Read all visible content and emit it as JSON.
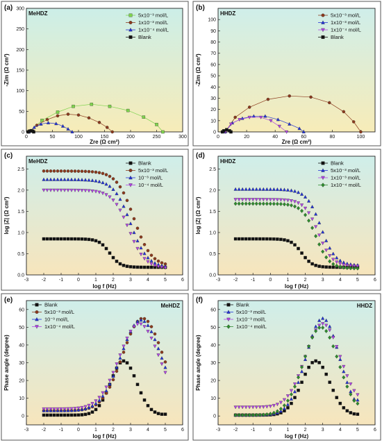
{
  "chart_data": [
    {
      "type": "scatter",
      "panel_label": "(a)",
      "title": "MeHDZ",
      "xlabel": "Zre (Ω cm²)",
      "ylabel": "-Zim (Ω cm²)",
      "xlim": [
        0,
        300
      ],
      "ylim": [
        0,
        300
      ],
      "xticks": [
        0,
        50,
        100,
        150,
        200,
        250,
        300
      ],
      "yticks": [
        0,
        50,
        100,
        150,
        200,
        250,
        300
      ],
      "legend_position": "top-right",
      "background_gradient": [
        "#cceee8",
        "#f7ecb8"
      ],
      "series": [
        {
          "name": "5x10⁻³ mol/L",
          "color": "#7fd34e",
          "marker": "square",
          "line": true,
          "points": [
            [
              5,
              0
            ],
            [
              30,
              28
            ],
            [
              60,
              48
            ],
            [
              90,
              62
            ],
            [
              125,
              67
            ],
            [
              160,
              62
            ],
            [
              195,
              52
            ],
            [
              225,
              36
            ],
            [
              250,
              18
            ],
            [
              262,
              0
            ]
          ]
        },
        {
          "name": "1x10⁻³ mol/L",
          "color": "#8b3a1e",
          "marker": "circle",
          "line": true,
          "points": [
            [
              5,
              0
            ],
            [
              20,
              16
            ],
            [
              40,
              30
            ],
            [
              60,
              39
            ],
            [
              80,
              43
            ],
            [
              100,
              41
            ],
            [
              120,
              34
            ],
            [
              140,
              23
            ],
            [
              155,
              11
            ],
            [
              165,
              0
            ]
          ]
        },
        {
          "name": "1x10⁻⁴ mol/L",
          "color": "#2433d6",
          "marker": "triangle",
          "line": true,
          "points": [
            [
              5,
              0
            ],
            [
              15,
              11
            ],
            [
              28,
              19
            ],
            [
              42,
              22
            ],
            [
              57,
              20
            ],
            [
              70,
              14
            ],
            [
              80,
              7
            ],
            [
              88,
              0
            ]
          ]
        },
        {
          "name": "Blank",
          "color": "#111111",
          "marker": "square",
          "line": true,
          "points": [
            [
              3,
              0
            ],
            [
              6,
              2
            ],
            [
              9,
              3
            ],
            [
              12,
              2
            ],
            [
              14,
              0
            ]
          ]
        }
      ]
    },
    {
      "type": "scatter",
      "panel_label": "(b)",
      "title": "HHDZ",
      "xlabel": "Zre (Ω cm²)",
      "ylabel": "-Zim (Ω cm²)",
      "xlim": [
        0,
        110
      ],
      "ylim": [
        0,
        110
      ],
      "xticks": [
        0,
        20,
        40,
        60,
        80,
        100
      ],
      "yticks": [
        0,
        10,
        20,
        30,
        40,
        50,
        60,
        70,
        80,
        90,
        100
      ],
      "legend_position": "top-right",
      "background_gradient": [
        "#cfeeea",
        "#f7ecb8"
      ],
      "series": [
        {
          "name": "5x10⁻³ mol/L",
          "color": "#8b3a1e",
          "marker": "circle",
          "line": true,
          "points": [
            [
              5,
              0
            ],
            [
              12,
              13
            ],
            [
              22,
              22
            ],
            [
              35,
              29
            ],
            [
              50,
              32
            ],
            [
              65,
              31
            ],
            [
              78,
              26
            ],
            [
              88,
              18
            ],
            [
              95,
              9
            ],
            [
              100,
              0
            ]
          ]
        },
        {
          "name": "1x10⁻³ mol/L",
          "color": "#2433d6",
          "marker": "triangle",
          "line": true,
          "points": [
            [
              5,
              0
            ],
            [
              10,
              8
            ],
            [
              17,
              12
            ],
            [
              25,
              14
            ],
            [
              33,
              14
            ],
            [
              42,
              11
            ],
            [
              50,
              7
            ],
            [
              57,
              3
            ],
            [
              60,
              0
            ]
          ]
        },
        {
          "name": "1x10⁻⁴ mol/L",
          "color": "#b146e6",
          "marker": "triangle-down",
          "line": true,
          "points": [
            [
              5,
              0
            ],
            [
              9,
              7
            ],
            [
              15,
              11
            ],
            [
              22,
              13
            ],
            [
              30,
              13
            ],
            [
              37,
              10
            ],
            [
              43,
              5
            ],
            [
              48,
              0
            ]
          ]
        },
        {
          "name": "Blank",
          "color": "#111111",
          "marker": "square",
          "line": true,
          "points": [
            [
              3,
              0
            ],
            [
              4,
              1
            ],
            [
              6,
              2
            ],
            [
              8,
              1
            ],
            [
              9,
              0
            ]
          ]
        }
      ]
    },
    {
      "type": "scatter",
      "panel_label": "(c)",
      "title": "MeHDZ",
      "xlabel": "log f (Hz)",
      "ylabel": "log |Z| (Ω cm²)",
      "xlim": [
        -3,
        6
      ],
      "ylim": [
        0,
        2.8
      ],
      "xticks": [
        -3,
        -2,
        -1,
        0,
        1,
        2,
        3,
        4,
        5,
        6
      ],
      "yticks": [
        0.0,
        0.5,
        1.0,
        1.5,
        2.0,
        2.5
      ],
      "legend_position": "top-right",
      "background_gradient": [
        "#cfeeea",
        "#f7e5bc"
      ],
      "series": [
        {
          "name": "Blank",
          "color": "#111111",
          "marker": "square",
          "shape": "bode-mod",
          "params": {
            "hi": 0.85,
            "lo": 0.18,
            "fc": 1.8,
            "w": 0.55
          }
        },
        {
          "name": "5x10⁻³ mol/L",
          "color": "#8b3a1e",
          "marker": "circle",
          "shape": "bode-mod",
          "params": {
            "hi": 2.45,
            "lo": 0.2,
            "fc": 3.2,
            "w": 0.9
          }
        },
        {
          "name": "10⁻³     mol/L",
          "color": "#2433d6",
          "marker": "triangle",
          "shape": "bode-mod",
          "params": {
            "hi": 2.25,
            "lo": 0.17,
            "fc": 3.0,
            "w": 0.88
          }
        },
        {
          "name": "10⁻⁴     mol/L",
          "color": "#b146e6",
          "marker": "triangle-down",
          "shape": "bode-mod",
          "params": {
            "hi": 2.0,
            "lo": 0.15,
            "fc": 2.9,
            "w": 0.85
          }
        }
      ]
    },
    {
      "type": "scatter",
      "panel_label": "(d)",
      "title": "HHDZ",
      "xlabel": "log f (Hz)",
      "ylabel": "log |Z| (Ω cm²)",
      "xlim": [
        -3,
        6
      ],
      "ylim": [
        0,
        2.8
      ],
      "xticks": [
        -3,
        -2,
        -1,
        0,
        1,
        2,
        3,
        4,
        5,
        6
      ],
      "yticks": [
        0.0,
        0.5,
        1.0,
        1.5,
        2.0,
        2.5
      ],
      "legend_position": "top-right",
      "background_gradient": [
        "#cfeeea",
        "#f7e5bc"
      ],
      "series": [
        {
          "name": "Blank",
          "color": "#111111",
          "marker": "square",
          "shape": "bode-mod",
          "params": {
            "hi": 0.85,
            "lo": 0.18,
            "fc": 1.8,
            "w": 0.55
          }
        },
        {
          "name": "5x10⁻³ mol/L",
          "color": "#2433d6",
          "marker": "triangle",
          "shape": "bode-mod",
          "params": {
            "hi": 2.02,
            "lo": 0.22,
            "fc": 2.9,
            "w": 0.75
          }
        },
        {
          "name": "1x10⁻³ mol/L",
          "color": "#b146e6",
          "marker": "triangle-down",
          "shape": "bode-mod",
          "params": {
            "hi": 1.78,
            "lo": 0.2,
            "fc": 2.75,
            "w": 0.72
          }
        },
        {
          "name": "1x10⁻⁴ mol/L",
          "color": "#2e8b2e",
          "marker": "diamond",
          "shape": "bode-mod",
          "params": {
            "hi": 1.68,
            "lo": 0.15,
            "fc": 2.6,
            "w": 0.7
          }
        }
      ]
    },
    {
      "type": "scatter",
      "panel_label": "(e)",
      "title": "MeHDZ",
      "xlabel": "log f (Hz)",
      "ylabel": "Phase angle (degree)",
      "xlim": [
        -3,
        6
      ],
      "ylim": [
        -5,
        65
      ],
      "xticks": [
        -3,
        -2,
        -1,
        0,
        1,
        2,
        3,
        4,
        5,
        6
      ],
      "yticks": [
        0,
        10,
        20,
        30,
        40,
        50,
        60
      ],
      "legend_position": "top-left",
      "background_gradient": [
        "#cfeeea",
        "#f7e5bc"
      ],
      "series": [
        {
          "name": "Blank",
          "color": "#111111",
          "marker": "square",
          "shape": "bode-phase",
          "params": {
            "peak": 31,
            "at": 2.6,
            "w": 0.75,
            "base": 0.5,
            "hi_end": 1
          }
        },
        {
          "name": "5x10⁻³ mol/L",
          "color": "#8b3a1e",
          "marker": "circle",
          "shape": "bode-phase",
          "params": {
            "peak": 55,
            "at": 3.7,
            "w": 1.15,
            "base": 3,
            "hi_end": 1
          }
        },
        {
          "name": "10⁻³     mol/L",
          "color": "#2433d6",
          "marker": "triangle",
          "shape": "bode-phase",
          "params": {
            "peak": 54,
            "at": 3.6,
            "w": 1.15,
            "base": 3,
            "hi_end": 1
          }
        },
        {
          "name": "1x10⁻⁴ mol/L",
          "color": "#b146e6",
          "marker": "triangle-down",
          "shape": "bode-phase",
          "params": {
            "peak": 52,
            "at": 3.5,
            "w": 1.15,
            "base": 4,
            "hi_end": 1
          }
        }
      ]
    },
    {
      "type": "scatter",
      "panel_label": "(f)",
      "title": "HHDZ",
      "xlabel": "log f (Hz)",
      "ylabel": "Phase angle (degree)",
      "xlim": [
        -3,
        6
      ],
      "ylim": [
        -5,
        65
      ],
      "xticks": [
        -3,
        -2,
        -1,
        0,
        1,
        2,
        3,
        4,
        5,
        6
      ],
      "yticks": [
        0,
        10,
        20,
        30,
        40,
        50,
        60
      ],
      "legend_position": "top-left",
      "background_gradient": [
        "#cfeeea",
        "#f7e5bc"
      ],
      "series": [
        {
          "name": "Blank",
          "color": "#111111",
          "marker": "square",
          "shape": "bode-phase",
          "params": {
            "peak": 31,
            "at": 2.6,
            "w": 0.8,
            "base": 0.5,
            "hi_end": 1
          }
        },
        {
          "name": "5x10⁻³ mol/L",
          "color": "#2433d6",
          "marker": "triangle",
          "shape": "bode-phase",
          "params": {
            "peak": 55,
            "at": 3.0,
            "w": 0.95,
            "base": 0.5,
            "hi_end": 9
          }
        },
        {
          "name": "1x10⁻³ mol/L",
          "color": "#b146e6",
          "marker": "triangle-down",
          "shape": "bode-phase",
          "params": {
            "peak": 52,
            "at": 3.0,
            "w": 1.0,
            "base": 5,
            "hi_end": 12
          }
        },
        {
          "name": "1x10⁻⁴ mol/L",
          "color": "#2e8b2e",
          "marker": "diamond",
          "shape": "bode-phase",
          "params": {
            "peak": 50,
            "at": 2.9,
            "w": 1.0,
            "base": 0.5,
            "hi_end": 7
          }
        }
      ]
    }
  ]
}
